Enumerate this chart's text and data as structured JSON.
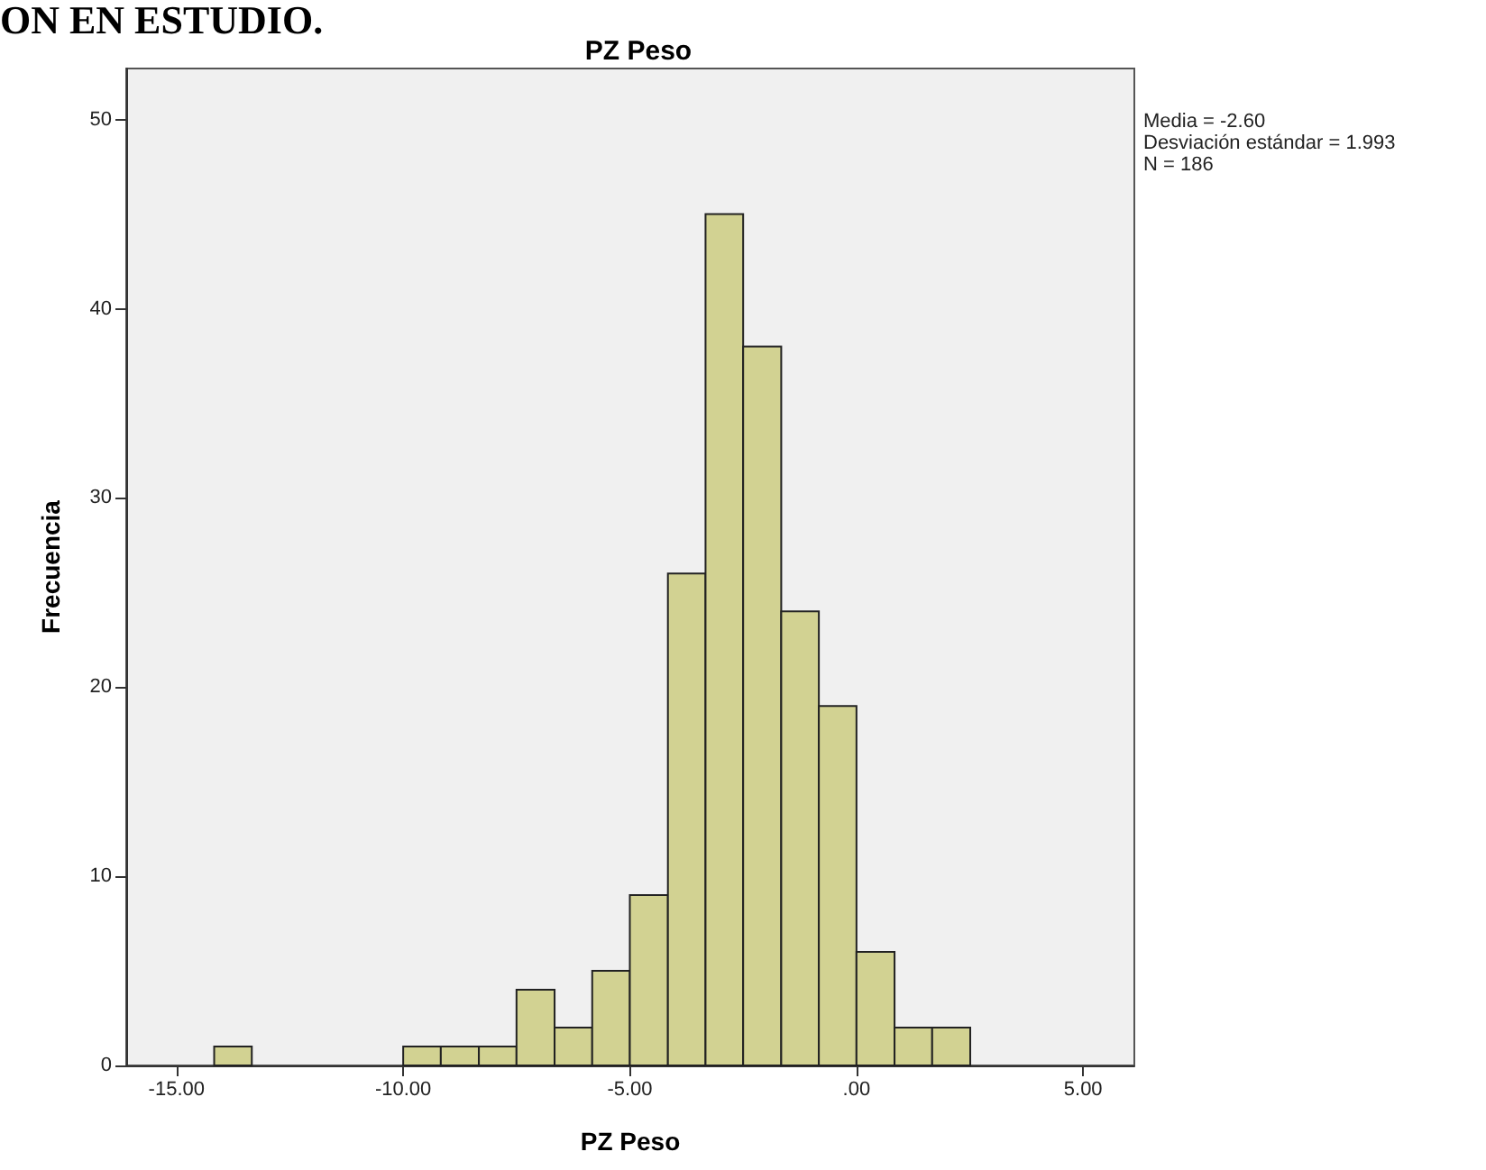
{
  "chart_data": {
    "type": "histogram",
    "title": "PZ Peso",
    "xlabel": "PZ Peso",
    "ylabel": "Frecuencia",
    "annotations": [
      "ON EN ESTUDIO.",
      "Media = -2.60",
      "Desviación estándar = 1.993",
      "N = 186"
    ],
    "bins": [
      -14.17,
      -13.34,
      -10.0,
      -9.17,
      -8.33,
      -7.5,
      -6.66,
      -5.83,
      -5.0,
      -4.16,
      -3.33,
      -2.5,
      -1.66,
      -0.83,
      0.0,
      0.84,
      1.67,
      2.51
    ],
    "values": [
      1,
      0,
      1,
      1,
      1,
      4,
      2,
      5,
      9,
      26,
      45,
      38,
      24,
      19,
      6,
      2,
      2
    ],
    "color": "#d2d292",
    "xlim": [
      -16.11,
      6.13
    ],
    "xticks": [
      {
        "value": -15,
        "label": "-15.00"
      },
      {
        "value": -10,
        "label": "-10.00"
      },
      {
        "value": -5,
        "label": "-5.00"
      },
      {
        "value": 0,
        "label": ".00"
      },
      {
        "value": 5,
        "label": "5.00"
      }
    ],
    "ylim": [
      0,
      52.7
    ],
    "yticks": [
      0,
      10,
      20,
      30,
      40,
      50
    ],
    "grid": false
  }
}
